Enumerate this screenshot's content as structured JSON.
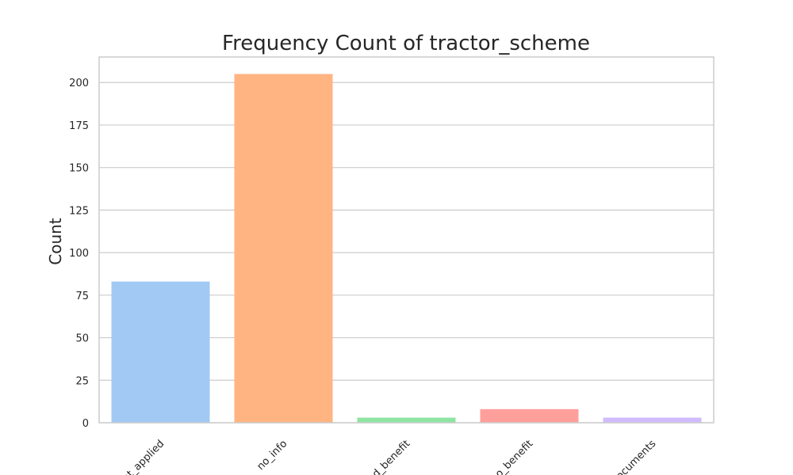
{
  "chart_data": {
    "type": "bar",
    "title": "Frequency Count of tractor_scheme",
    "xlabel": "",
    "ylabel": "Count",
    "ylim": [
      0,
      215
    ],
    "yticks": [
      0,
      25,
      50,
      75,
      100,
      125,
      150,
      175,
      200
    ],
    "grid": true,
    "categories": [
      "not_applied",
      "no_info",
      "applied_benefit",
      "no_benefit",
      "documents"
    ],
    "visible_tick_labels": [
      "nt_applied",
      "no_info",
      "ed_benefit",
      "no_benefit",
      "documents"
    ],
    "values": [
      83,
      205,
      3,
      8,
      3
    ],
    "colors": [
      "#a1c9f4",
      "#ffb482",
      "#8de5a1",
      "#ff9f9b",
      "#d0bbff"
    ]
  }
}
